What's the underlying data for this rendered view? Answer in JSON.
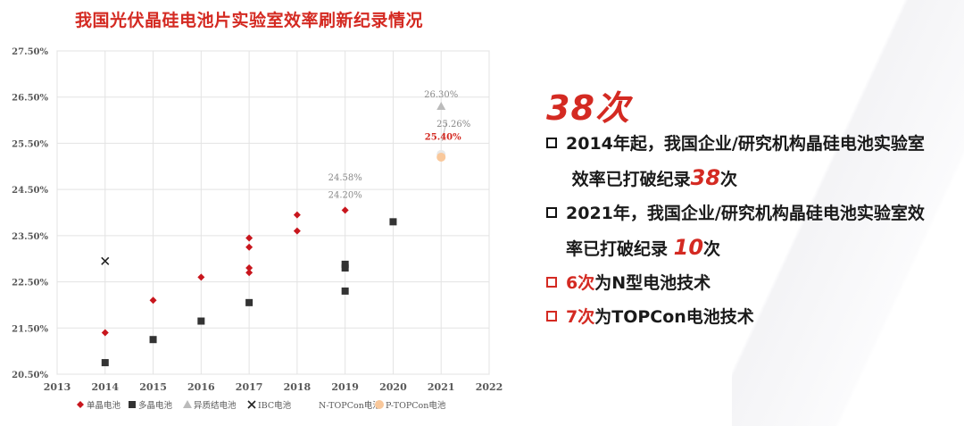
{
  "title": "我国光伏晶硅电池片实验室效率刷新纪录情况",
  "summary": {
    "count_big": "38次",
    "bullets": [
      {
        "color": "#111111",
        "line1": "2014年起，我国企业/研究机构晶硅电池实验室",
        "line2_pre": "效率已打破纪录",
        "line2_hl": "38",
        "line2_post": "次"
      },
      {
        "color": "#111111",
        "line1": "2021年，我国企业/研究机构晶硅电池实验室效",
        "line2_pre": "率已打破纪录 ",
        "line2_hl": "10",
        "line2_post": "次"
      },
      {
        "color": "#d42a22",
        "num": "6次",
        "text": "为N型电池技术"
      },
      {
        "color": "#d42a22",
        "num": "7次",
        "text": "为TOPCon电池技术"
      }
    ]
  },
  "chart_data": {
    "type": "scatter",
    "title": "",
    "xlabel": "",
    "ylabel": "",
    "xlim": [
      2013,
      2022
    ],
    "ylim": [
      20.5,
      27.5
    ],
    "x_ticks": [
      "2013",
      "2014",
      "2015",
      "2016",
      "2017",
      "2018",
      "2019",
      "2020",
      "2021",
      "2022"
    ],
    "y_ticks": [
      "20.50%",
      "21.50%",
      "22.50%",
      "23.50%",
      "24.50%",
      "25.50%",
      "26.50%",
      "27.50%"
    ],
    "grid": true,
    "legend_position": "bottom",
    "series": [
      {
        "name": "单晶电池",
        "color": "#c8161d",
        "marker": "diamond",
        "points": [
          [
            2014,
            21.4
          ],
          [
            2015,
            22.1
          ],
          [
            2016,
            22.6
          ],
          [
            2017,
            22.7
          ],
          [
            2017,
            22.8
          ],
          [
            2017,
            23.25
          ],
          [
            2017,
            23.45
          ],
          [
            2018,
            23.6
          ],
          [
            2018,
            23.95
          ],
          [
            2019,
            24.05
          ]
        ]
      },
      {
        "name": "多晶电池",
        "color": "#333333",
        "marker": "square",
        "points": [
          [
            2014,
            20.75
          ],
          [
            2015,
            21.25
          ],
          [
            2016,
            21.65
          ],
          [
            2017,
            22.05
          ],
          [
            2019,
            22.3
          ],
          [
            2019,
            22.8
          ],
          [
            2019,
            22.88
          ],
          [
            2020,
            23.8
          ]
        ]
      },
      {
        "name": "异质结电池",
        "color": "#bbbbbb",
        "marker": "triangle",
        "points": [
          [
            2021,
            26.3
          ]
        ]
      },
      {
        "name": "IBC电池",
        "color": "#222222",
        "marker": "cross",
        "points": [
          [
            2014,
            22.95
          ]
        ]
      },
      {
        "name": "N-TOPCon电池",
        "color": "#e8e8e8",
        "marker": "circle",
        "points": [
          [
            2021,
            25.26
          ]
        ]
      },
      {
        "name": "P-TOPCon电池",
        "color": "#f9c89b",
        "marker": "circle",
        "points": [
          [
            2021,
            25.2
          ]
        ]
      }
    ],
    "annotations": [
      {
        "text": "26.30%",
        "x": 2021,
        "y": 26.3,
        "color": "#888888"
      },
      {
        "text": "25.26%",
        "x": 2021,
        "y": 25.26,
        "color": "#888888"
      },
      {
        "text": "25.40%",
        "x": 2021,
        "y": 25.4,
        "color": "#d42a22"
      },
      {
        "text": "24.58%",
        "x": 2019,
        "y": 24.58,
        "color": "#888888"
      },
      {
        "text": "24.20%",
        "x": 2019,
        "y": 24.2,
        "color": "#888888"
      }
    ]
  }
}
